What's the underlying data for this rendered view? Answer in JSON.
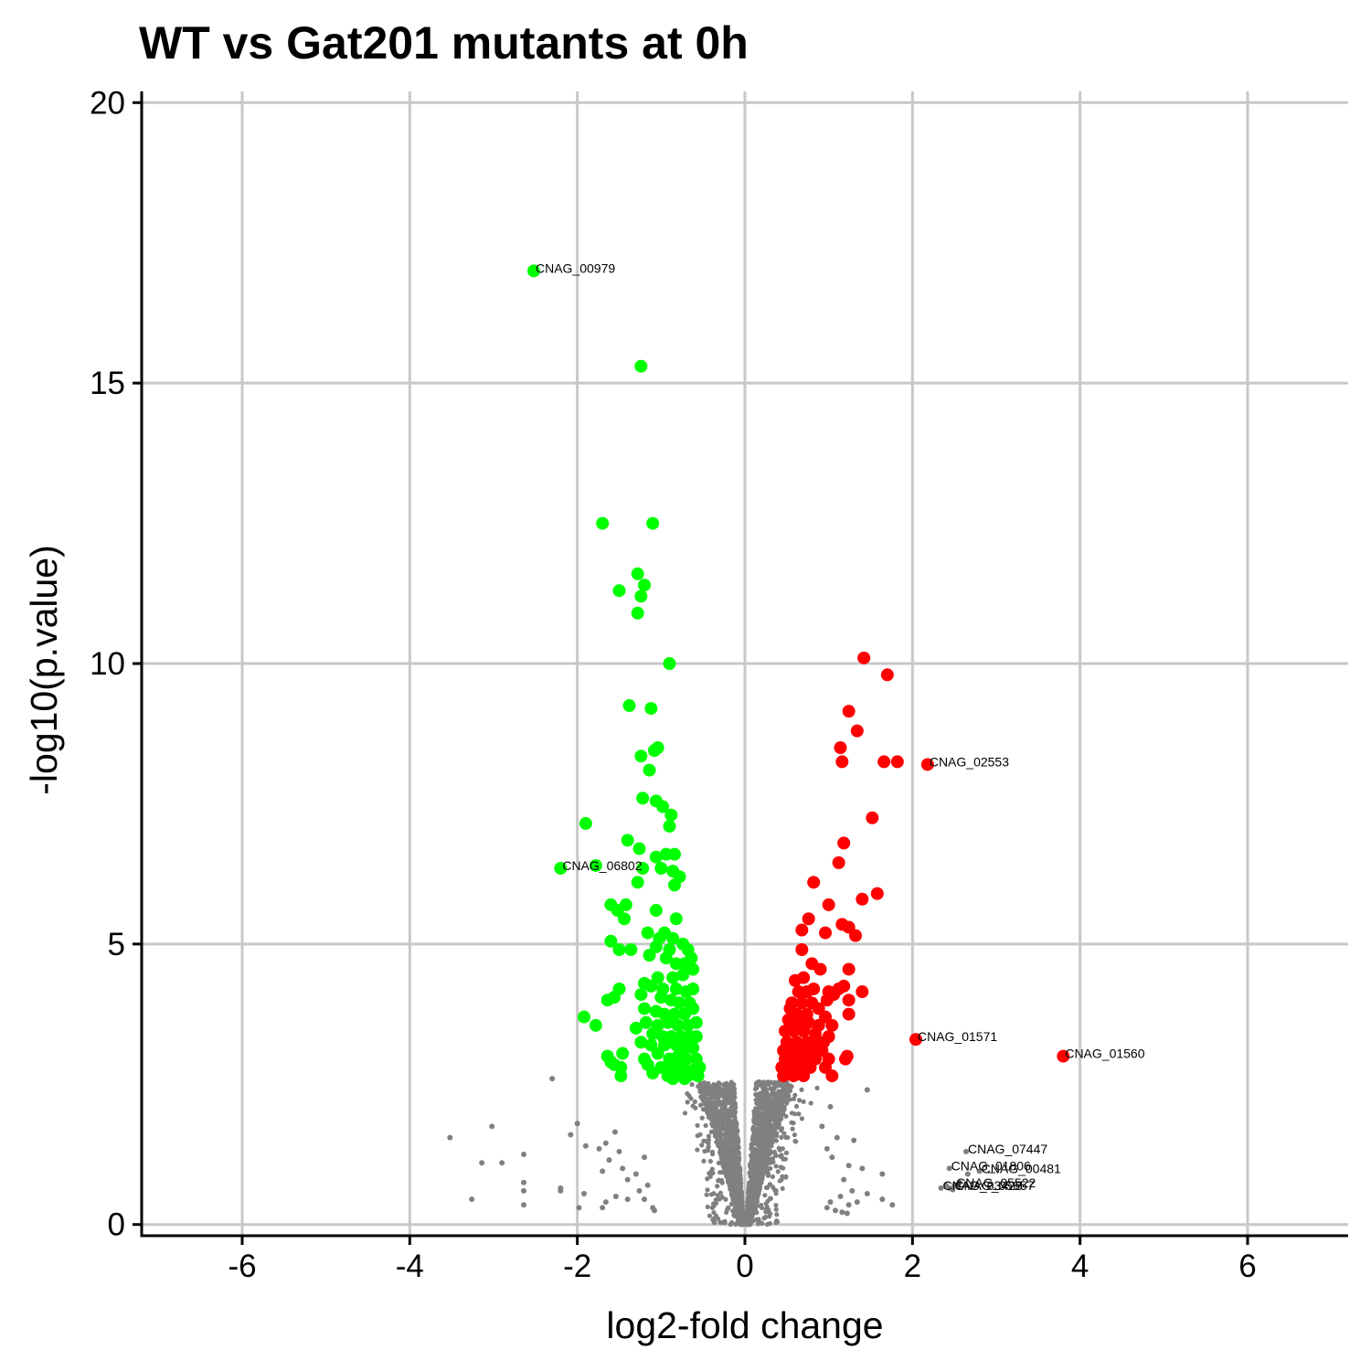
{
  "chart_data": {
    "type": "scatter",
    "title": "WT vs Gat201 mutants at 0h",
    "xlabel": "log2-fold change",
    "ylabel": "-log10(p.value)",
    "xlim": [
      -7.2,
      7.2
    ],
    "ylim": [
      -0.2,
      20.2
    ],
    "xticks": [
      -6,
      -4,
      -2,
      0,
      2,
      4,
      6
    ],
    "xtick_labels": [
      "-6",
      "-4",
      "-2",
      "0",
      "2",
      "4",
      "6"
    ],
    "yticks": [
      0,
      5,
      10,
      15,
      20
    ],
    "ytick_labels": [
      "0",
      "5",
      "10",
      "15",
      "20"
    ],
    "grid": true,
    "colors": {
      "down": "#00ff00",
      "up": "#ff0000",
      "ns": "#808080"
    },
    "series": [
      {
        "group": "down",
        "points": [
          [
            -2.52,
            17.0
          ],
          [
            -1.24,
            15.3
          ],
          [
            -1.7,
            12.5
          ],
          [
            -1.1,
            12.5
          ],
          [
            -1.28,
            11.6
          ],
          [
            -1.2,
            11.4
          ],
          [
            -1.24,
            11.2
          ],
          [
            -1.5,
            11.3
          ],
          [
            -1.28,
            10.9
          ],
          [
            -0.9,
            10.0
          ],
          [
            -1.38,
            9.25
          ],
          [
            -1.12,
            9.2
          ],
          [
            -1.04,
            8.5
          ],
          [
            -1.08,
            8.45
          ],
          [
            -1.24,
            8.35
          ],
          [
            -1.14,
            8.1
          ],
          [
            -1.22,
            7.6
          ],
          [
            -1.06,
            7.55
          ],
          [
            -0.98,
            7.45
          ],
          [
            -0.88,
            7.3
          ],
          [
            -0.9,
            7.1
          ],
          [
            -1.9,
            7.15
          ],
          [
            -1.4,
            6.85
          ],
          [
            -1.26,
            6.7
          ],
          [
            -1.06,
            6.55
          ],
          [
            -0.94,
            6.6
          ],
          [
            -0.84,
            6.6
          ],
          [
            -2.2,
            6.35
          ],
          [
            -1.78,
            6.4
          ],
          [
            -1.22,
            6.35
          ],
          [
            -1.0,
            6.35
          ],
          [
            -0.86,
            6.3
          ],
          [
            -0.78,
            6.2
          ],
          [
            -0.84,
            6.05
          ],
          [
            -1.28,
            6.1
          ],
          [
            -1.6,
            5.7
          ],
          [
            -1.42,
            5.7
          ],
          [
            -1.52,
            5.6
          ],
          [
            -1.06,
            5.6
          ],
          [
            -0.82,
            5.45
          ],
          [
            -1.44,
            5.45
          ],
          [
            -0.96,
            5.2
          ],
          [
            -1.16,
            5.2
          ],
          [
            -1.02,
            5.1
          ],
          [
            -0.86,
            5.1
          ],
          [
            -1.06,
            4.95
          ],
          [
            -0.9,
            4.9
          ],
          [
            -0.74,
            5.0
          ],
          [
            -0.68,
            4.9
          ],
          [
            -1.6,
            5.05
          ],
          [
            -1.36,
            4.9
          ],
          [
            -1.5,
            4.9
          ],
          [
            -0.64,
            4.75
          ],
          [
            -0.62,
            4.55
          ],
          [
            -0.72,
            4.65
          ],
          [
            -0.82,
            4.65
          ],
          [
            -0.94,
            4.75
          ],
          [
            -1.14,
            4.8
          ],
          [
            -0.74,
            4.45
          ],
          [
            -0.86,
            4.4
          ],
          [
            -1.04,
            4.4
          ],
          [
            -1.2,
            4.3
          ],
          [
            -1.12,
            4.25
          ],
          [
            -0.98,
            4.2
          ],
          [
            -0.82,
            4.2
          ],
          [
            -0.7,
            4.15
          ],
          [
            -0.62,
            4.2
          ],
          [
            -0.66,
            3.95
          ],
          [
            -0.78,
            3.95
          ],
          [
            -0.88,
            4.0
          ],
          [
            -1.0,
            4.05
          ],
          [
            -1.24,
            4.1
          ],
          [
            -1.5,
            4.2
          ],
          [
            -1.56,
            4.05
          ],
          [
            -1.64,
            4.0
          ],
          [
            -1.2,
            3.85
          ],
          [
            -1.06,
            3.8
          ],
          [
            -0.96,
            3.75
          ],
          [
            -0.84,
            3.75
          ],
          [
            -0.72,
            3.75
          ],
          [
            -0.62,
            3.85
          ],
          [
            -0.58,
            3.6
          ],
          [
            -0.68,
            3.55
          ],
          [
            -0.8,
            3.55
          ],
          [
            -0.92,
            3.6
          ],
          [
            -1.04,
            3.55
          ],
          [
            -1.18,
            3.6
          ],
          [
            -1.92,
            3.7
          ],
          [
            -1.78,
            3.55
          ],
          [
            -1.3,
            3.5
          ],
          [
            -1.1,
            3.4
          ],
          [
            -0.98,
            3.35
          ],
          [
            -0.88,
            3.35
          ],
          [
            -0.76,
            3.35
          ],
          [
            -0.66,
            3.35
          ],
          [
            -0.58,
            3.35
          ],
          [
            -0.62,
            3.15
          ],
          [
            -0.72,
            3.15
          ],
          [
            -0.82,
            3.2
          ],
          [
            -0.96,
            3.2
          ],
          [
            -1.12,
            3.2
          ],
          [
            -1.24,
            3.25
          ],
          [
            -0.58,
            2.95
          ],
          [
            -0.7,
            2.95
          ],
          [
            -0.8,
            3.0
          ],
          [
            -0.9,
            2.95
          ],
          [
            -1.04,
            3.05
          ],
          [
            -1.2,
            2.95
          ],
          [
            -1.46,
            3.05
          ],
          [
            -1.64,
            3.0
          ],
          [
            -1.56,
            2.85
          ],
          [
            -1.6,
            2.9
          ],
          [
            -1.48,
            2.8
          ],
          [
            -1.16,
            2.85
          ],
          [
            -1.0,
            2.8
          ],
          [
            -0.88,
            2.85
          ],
          [
            -0.74,
            2.85
          ],
          [
            -0.62,
            2.75
          ],
          [
            -0.54,
            2.8
          ],
          [
            -0.56,
            2.65
          ],
          [
            -0.68,
            2.65
          ],
          [
            -0.8,
            2.7
          ],
          [
            -0.92,
            2.65
          ],
          [
            -1.1,
            2.7
          ],
          [
            -1.48,
            2.65
          ],
          [
            -0.86,
            2.6
          ],
          [
            -0.72,
            2.6
          ]
        ]
      },
      {
        "group": "up",
        "points": [
          [
            1.42,
            10.1
          ],
          [
            1.7,
            9.8
          ],
          [
            1.24,
            9.15
          ],
          [
            1.34,
            8.8
          ],
          [
            1.14,
            8.5
          ],
          [
            1.16,
            8.25
          ],
          [
            1.66,
            8.25
          ],
          [
            1.82,
            8.25
          ],
          [
            2.18,
            8.2
          ],
          [
            1.52,
            7.25
          ],
          [
            1.18,
            6.8
          ],
          [
            1.12,
            6.45
          ],
          [
            0.82,
            6.1
          ],
          [
            1.58,
            5.9
          ],
          [
            1.4,
            5.8
          ],
          [
            1.0,
            5.7
          ],
          [
            0.76,
            5.45
          ],
          [
            1.16,
            5.35
          ],
          [
            1.24,
            5.3
          ],
          [
            0.68,
            5.25
          ],
          [
            0.96,
            5.2
          ],
          [
            1.32,
            5.15
          ],
          [
            0.68,
            4.9
          ],
          [
            0.8,
            4.65
          ],
          [
            0.9,
            4.55
          ],
          [
            1.24,
            4.55
          ],
          [
            0.7,
            4.4
          ],
          [
            0.6,
            4.35
          ],
          [
            1.18,
            4.25
          ],
          [
            0.82,
            4.2
          ],
          [
            0.64,
            4.15
          ],
          [
            0.74,
            4.15
          ],
          [
            1.0,
            4.15
          ],
          [
            1.12,
            4.2
          ],
          [
            1.4,
            4.15
          ],
          [
            0.98,
            4.0
          ],
          [
            1.06,
            4.1
          ],
          [
            1.24,
            4.0
          ],
          [
            0.56,
            3.95
          ],
          [
            0.68,
            3.95
          ],
          [
            0.8,
            3.95
          ],
          [
            0.88,
            3.85
          ],
          [
            0.54,
            3.85
          ],
          [
            0.62,
            3.75
          ],
          [
            0.74,
            3.75
          ],
          [
            0.96,
            3.7
          ],
          [
            1.24,
            3.75
          ],
          [
            0.52,
            3.65
          ],
          [
            0.64,
            3.6
          ],
          [
            0.76,
            3.6
          ],
          [
            0.88,
            3.55
          ],
          [
            1.04,
            3.55
          ],
          [
            0.48,
            3.45
          ],
          [
            0.58,
            3.45
          ],
          [
            0.7,
            3.45
          ],
          [
            0.84,
            3.4
          ],
          [
            1.0,
            3.35
          ],
          [
            0.5,
            3.25
          ],
          [
            0.62,
            3.25
          ],
          [
            0.74,
            3.25
          ],
          [
            0.84,
            3.2
          ],
          [
            0.94,
            3.25
          ],
          [
            2.04,
            3.3
          ],
          [
            0.46,
            3.1
          ],
          [
            0.56,
            3.1
          ],
          [
            0.68,
            3.1
          ],
          [
            0.78,
            3.05
          ],
          [
            0.92,
            3.1
          ],
          [
            3.8,
            3.0
          ],
          [
            0.48,
            2.95
          ],
          [
            0.6,
            2.95
          ],
          [
            0.72,
            2.9
          ],
          [
            0.84,
            2.95
          ],
          [
            1.0,
            2.95
          ],
          [
            1.2,
            2.95
          ],
          [
            1.22,
            3.0
          ],
          [
            0.44,
            2.8
          ],
          [
            0.54,
            2.8
          ],
          [
            0.66,
            2.8
          ],
          [
            0.78,
            2.8
          ],
          [
            0.96,
            2.8
          ],
          [
            0.46,
            2.65
          ],
          [
            0.58,
            2.65
          ],
          [
            0.7,
            2.65
          ],
          [
            1.04,
            2.65
          ]
        ]
      },
      {
        "group": "ns",
        "points": [
          [
            -2.3,
            2.6
          ],
          [
            -1.55,
            1.65
          ],
          [
            -1.66,
            1.45
          ],
          [
            -1.74,
            1.35
          ],
          [
            -1.5,
            1.3
          ],
          [
            -1.62,
            1.15
          ],
          [
            -1.46,
            1.0
          ],
          [
            -1.7,
            0.95
          ],
          [
            -1.2,
            1.2
          ],
          [
            -1.3,
            0.9
          ],
          [
            -1.4,
            0.8
          ],
          [
            -1.16,
            0.7
          ],
          [
            -1.26,
            0.6
          ],
          [
            -1.54,
            0.5
          ],
          [
            -1.4,
            0.45
          ],
          [
            -1.66,
            0.4
          ],
          [
            -1.7,
            0.3
          ],
          [
            -1.1,
            0.3
          ],
          [
            -1.2,
            0.45
          ],
          [
            -1.08,
            0.25
          ],
          [
            -3.52,
            1.55
          ],
          [
            -3.02,
            1.75
          ],
          [
            -2.64,
            1.25
          ],
          [
            -2.9,
            1.1
          ],
          [
            -3.14,
            1.1
          ],
          [
            -2.64,
            0.75
          ],
          [
            -2.64,
            0.6
          ],
          [
            -2.2,
            0.65
          ],
          [
            -2.2,
            0.6
          ],
          [
            -1.92,
            0.55
          ],
          [
            -3.26,
            0.45
          ],
          [
            -2.64,
            0.35
          ],
          [
            -1.98,
            0.3
          ],
          [
            -2.08,
            1.6
          ],
          [
            -1.9,
            1.4
          ],
          [
            -2.0,
            1.8
          ],
          [
            1.46,
            2.4
          ],
          [
            1.02,
            2.1
          ],
          [
            0.92,
            1.75
          ],
          [
            1.1,
            1.55
          ],
          [
            1.3,
            1.5
          ],
          [
            0.98,
            1.35
          ],
          [
            1.04,
            1.2
          ],
          [
            1.24,
            1.05
          ],
          [
            1.4,
            1.0
          ],
          [
            1.64,
            0.9
          ],
          [
            1.18,
            0.8
          ],
          [
            1.28,
            0.6
          ],
          [
            1.46,
            0.55
          ],
          [
            1.02,
            0.4
          ],
          [
            1.24,
            0.35
          ],
          [
            1.34,
            0.4
          ],
          [
            1.64,
            0.45
          ],
          [
            1.76,
            0.35
          ],
          [
            0.98,
            0.3
          ],
          [
            1.08,
            0.25
          ],
          [
            1.14,
            0.5
          ],
          [
            2.64,
            1.3
          ],
          [
            2.44,
            1.0
          ],
          [
            2.8,
            0.95
          ],
          [
            2.66,
            0.9
          ],
          [
            2.34,
            0.65
          ],
          [
            2.4,
            0.7
          ],
          [
            2.44,
            0.65
          ],
          [
            2.5,
            0.7
          ],
          [
            2.56,
            0.75
          ],
          [
            2.48,
            0.62
          ],
          [
            1.16,
            0.22
          ],
          [
            1.22,
            0.2
          ]
        ]
      }
    ],
    "labeled_points": [
      {
        "label": "CNAG_00979",
        "x": -2.52,
        "y": 17.0
      },
      {
        "label": "CNAG_06802",
        "x": -2.2,
        "y": 6.35
      },
      {
        "label": "CNAG_02553",
        "x": 2.18,
        "y": 8.2
      },
      {
        "label": "CNAG_01571",
        "x": 2.04,
        "y": 3.3
      },
      {
        "label": "CNAG_01560",
        "x": 3.8,
        "y": 3.0
      },
      {
        "label": "CNAG_07447",
        "x": 2.64,
        "y": 1.3
      },
      {
        "label": "CNAG_01806",
        "x": 2.44,
        "y": 1.0
      },
      {
        "label": "CNAG_00481",
        "x": 2.8,
        "y": 0.95
      },
      {
        "label": "CNAG_05522",
        "x": 2.5,
        "y": 0.7
      },
      {
        "label": "CNAG_05657",
        "x": 2.48,
        "y": 0.65
      },
      {
        "label": "CNAG_03425",
        "x": 2.34,
        "y": 0.65
      }
    ]
  }
}
